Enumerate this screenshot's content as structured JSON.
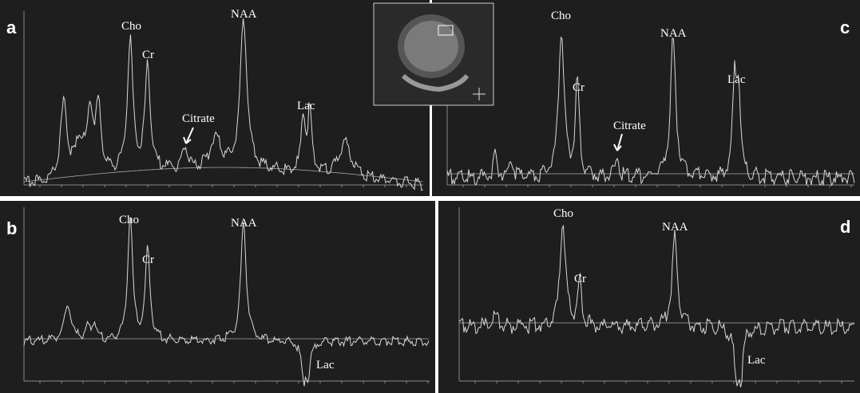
{
  "panels": [
    {
      "letter": "a",
      "peaks": [
        "Cho",
        "Cr",
        "Citrate",
        "NAA",
        "Lac"
      ]
    },
    {
      "letter": "c",
      "peaks": [
        "Cho",
        "Cr",
        "Citrate",
        "NAA",
        "Lac"
      ]
    },
    {
      "letter": "b",
      "peaks": [
        "Cho",
        "Cr",
        "NAA",
        "Lac"
      ]
    },
    {
      "letter": "d",
      "peaks": [
        "Cho",
        "Cr",
        "NAA",
        "Lac"
      ]
    }
  ]
}
